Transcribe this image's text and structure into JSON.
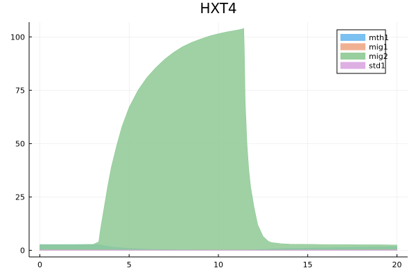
{
  "chart_data": {
    "type": "area",
    "title": "HXT4",
    "xlabel": "",
    "ylabel": "",
    "xlim": [
      -0.6,
      20.6
    ],
    "ylim": [
      -3.1,
      106.9
    ],
    "xticks": [
      0,
      5,
      10,
      15,
      20
    ],
    "xtick_labels": [
      "0",
      "5",
      "10",
      "15",
      "20"
    ],
    "yticks": [
      0,
      25,
      50,
      75,
      100
    ],
    "ytick_labels": [
      "0",
      "25",
      "50",
      "75",
      "100"
    ],
    "grid": true,
    "legend_position": "top-right",
    "series": [
      {
        "name": "mth1",
        "color": "#6cb9ee",
        "x": [
          0,
          3.3,
          4,
          5,
          6,
          8,
          10,
          11.4,
          12,
          13,
          14,
          16,
          18,
          20
        ],
        "y": [
          2.7,
          2.7,
          1.6,
          0.9,
          0.5,
          0.3,
          0.2,
          0.2,
          0.3,
          0.6,
          0.9,
          1.2,
          1.5,
          1.7
        ]
      },
      {
        "name": "mig1",
        "color": "#eea987",
        "x": [
          0,
          3.3,
          4,
          5,
          6,
          8,
          10,
          11.4,
          12,
          13,
          14,
          16,
          18,
          20
        ],
        "y": [
          0.4,
          0.4,
          0.35,
          0.3,
          0.25,
          0.2,
          0.2,
          0.2,
          0.2,
          0.25,
          0.3,
          0.35,
          0.4,
          0.45
        ]
      },
      {
        "name": "mig2",
        "color": "#8ec994",
        "x": [
          0,
          1,
          2,
          3,
          3.3,
          3.4,
          3.6,
          3.8,
          4,
          4.3,
          4.6,
          5,
          5.5,
          6,
          6.5,
          7,
          7.5,
          8,
          8.5,
          9,
          9.5,
          10,
          10.5,
          11,
          11.3,
          11.42,
          11.45,
          11.5,
          11.6,
          11.7,
          11.8,
          12,
          12.2,
          12.5,
          12.8,
          13,
          13.5,
          14,
          15,
          16,
          17,
          18,
          19,
          20
        ],
        "y": [
          2.7,
          2.7,
          2.7,
          2.8,
          4.0,
          10,
          20,
          30,
          38.8,
          49,
          58,
          67,
          75,
          81,
          85.6,
          89.6,
          92.8,
          95.4,
          97.4,
          99.0,
          100.4,
          101.5,
          102.4,
          103.1,
          103.6,
          104.0,
          95,
          70,
          50,
          38,
          30,
          20,
          12,
          6.5,
          4.2,
          3.6,
          3.1,
          2.9,
          2.8,
          2.7,
          2.7,
          2.6,
          2.6,
          2.5
        ]
      },
      {
        "name": "std1",
        "color": "#d9a6e0",
        "x": [
          0,
          4,
          8,
          11.4,
          14,
          20
        ],
        "y": [
          0.15,
          0.15,
          0.12,
          0.12,
          0.15,
          0.2
        ]
      }
    ]
  }
}
